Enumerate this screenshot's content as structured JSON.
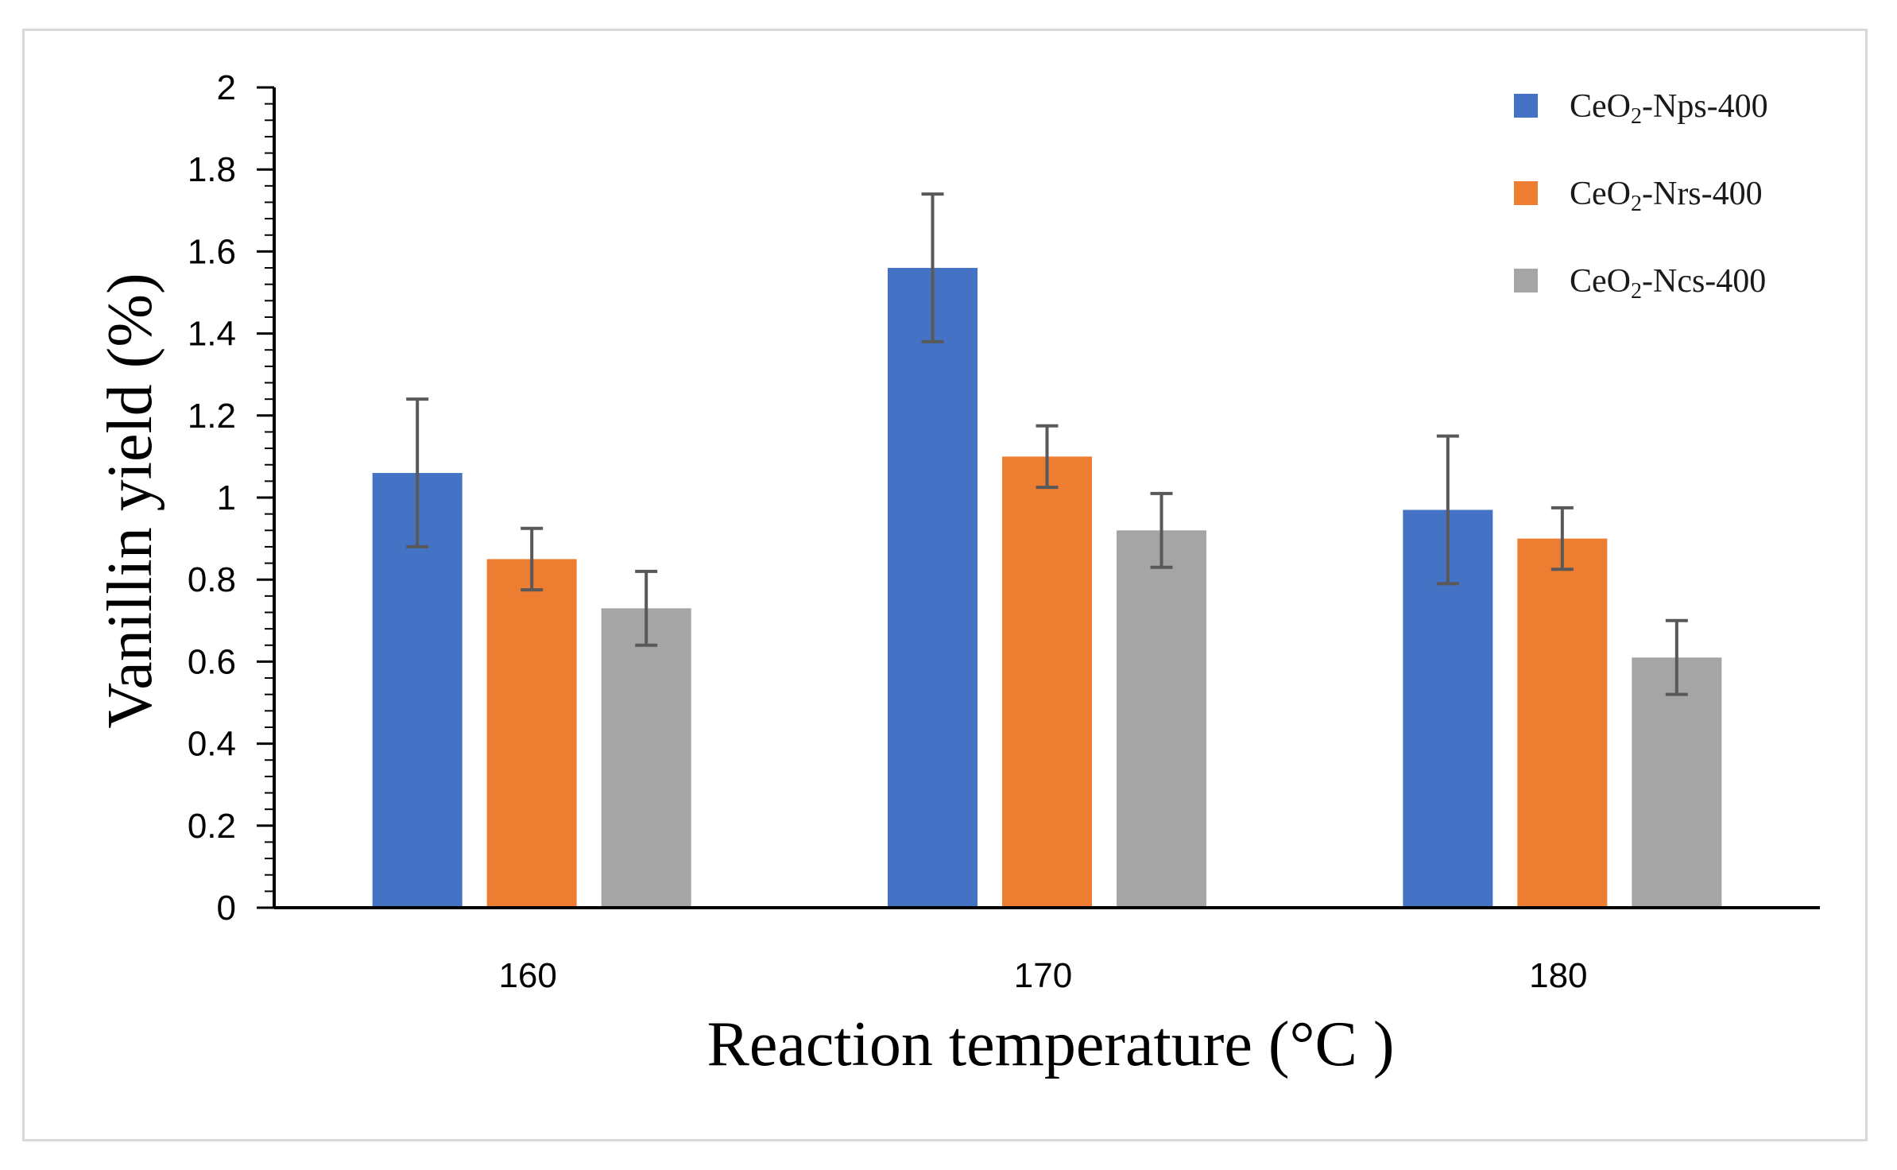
{
  "chart_data": {
    "type": "bar",
    "title": "",
    "xlabel": "Reaction temperature (°C )",
    "ylabel": "Vanillin yield (%)",
    "categories": [
      "160",
      "170",
      "180"
    ],
    "ylim": [
      0,
      2
    ],
    "yticks": [
      "0",
      "0.2",
      "0.4",
      "0.6",
      "0.8",
      "1",
      "1.2",
      "1.4",
      "1.6",
      "1.8",
      "2"
    ],
    "grid": false,
    "legend_position": "top-right",
    "series": [
      {
        "name": "CeO2-Nps-400",
        "legend_main": "CeO",
        "legend_sub": "2",
        "legend_rest": "-Nps-400",
        "color": "#4472c4",
        "values": [
          1.06,
          1.56,
          0.97
        ],
        "errors": [
          0.18,
          0.18,
          0.18
        ]
      },
      {
        "name": "CeO2-Nrs-400",
        "legend_main": "CeO",
        "legend_sub": "2",
        "legend_rest": "-Nrs-400",
        "color": "#ed7d31",
        "values": [
          0.85,
          1.1,
          0.9
        ],
        "errors": [
          0.075,
          0.075,
          0.075
        ]
      },
      {
        "name": "CeO2-Ncs-400",
        "legend_main": "CeO",
        "legend_sub": "2",
        "legend_rest": "-Ncs-400",
        "color": "#a5a5a5",
        "values": [
          0.73,
          0.92,
          0.61
        ],
        "errors": [
          0.09,
          0.09,
          0.09
        ]
      }
    ],
    "error_bar_color": "#595959",
    "axis_color": "#000000"
  }
}
